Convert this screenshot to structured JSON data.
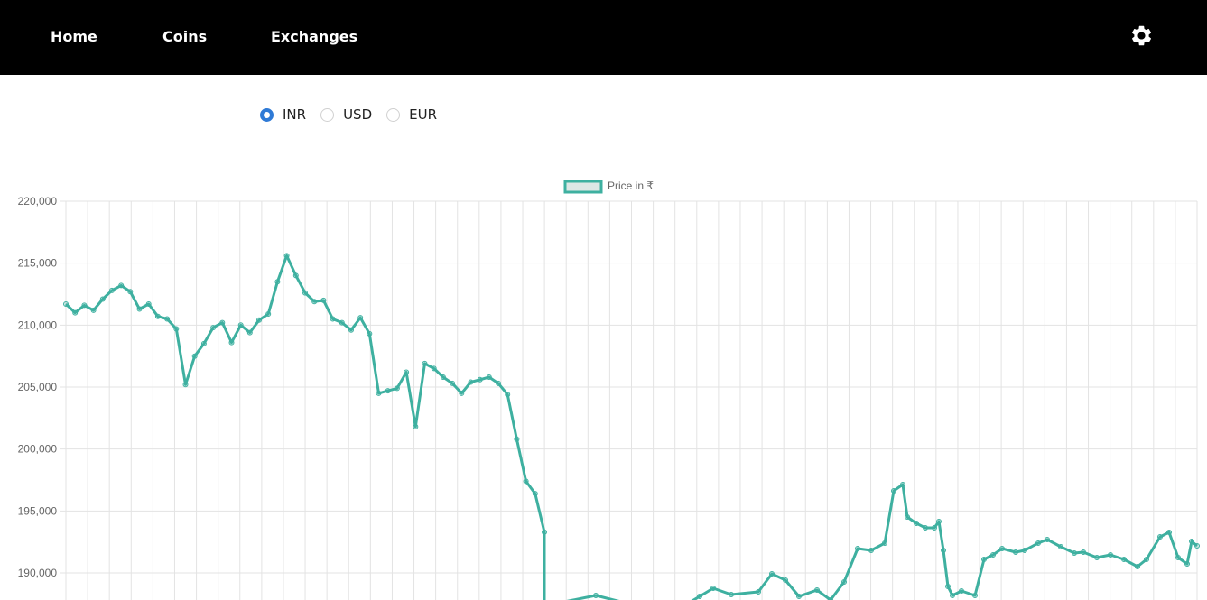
{
  "nav": {
    "links": [
      "Home",
      "Coins",
      "Exchanges"
    ],
    "settings_icon": "gear-icon"
  },
  "currency": {
    "options": [
      "INR",
      "USD",
      "EUR"
    ],
    "selected": "INR",
    "accent": "#2f7ad6"
  },
  "chart_data": {
    "type": "line",
    "legend": "Price in ₹",
    "legend_position": "top-center",
    "series_color": "#3eb0a0",
    "grid": true,
    "y_ticks": [
      220000,
      215000,
      210000,
      205000,
      200000,
      195000,
      190000
    ],
    "y_tick_labels": [
      "220,000",
      "215,000",
      "210,000",
      "205,000",
      "200,000",
      "195,000",
      "190,000"
    ],
    "ylim": [
      187800,
      220000
    ],
    "x_count": 53,
    "values": [
      211700,
      211000,
      211600,
      211200,
      212100,
      212800,
      213200,
      212700,
      211300,
      211700,
      210700,
      210500,
      209700,
      205200,
      207500,
      208500,
      209800,
      210200,
      208600,
      210000,
      209400,
      210400,
      210900,
      213500,
      215600,
      214000,
      212600,
      211900,
      212000,
      210500,
      210200,
      209600,
      210600,
      209300,
      204500,
      204700,
      204900,
      206200,
      201800,
      206900,
      206500,
      205800,
      205300,
      204500,
      205400,
      205600,
      205800,
      205300,
      204400,
      200800,
      197400,
      196400,
      193300
    ]
  }
}
